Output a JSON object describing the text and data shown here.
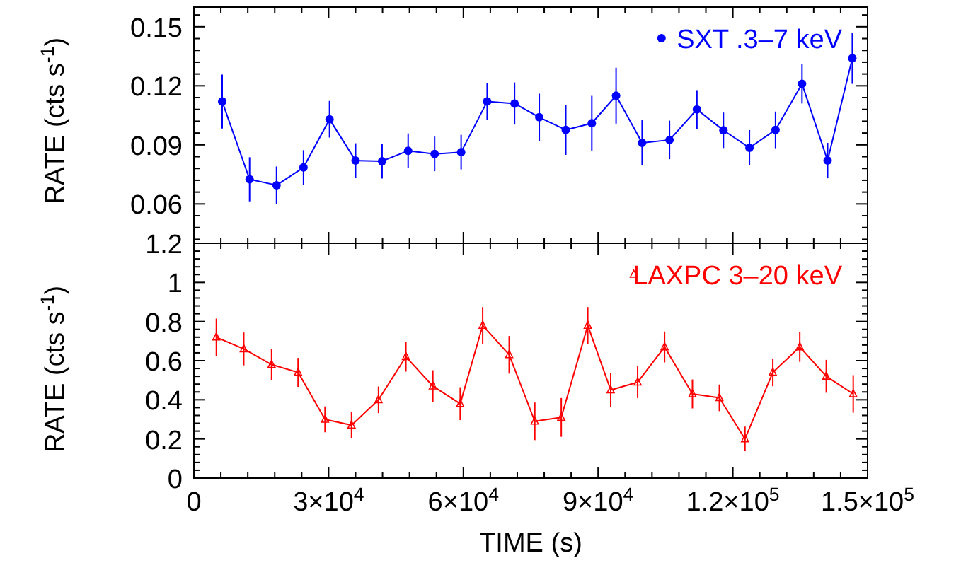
{
  "chart_data": [
    {
      "type": "line",
      "ylabel": "RATE (cts s$^{-1}$)",
      "legend": "top right",
      "tick_labels": "y",
      "marker": "circle",
      "line_style": "solid",
      "xlim": [
        0,
        150000
      ],
      "xticks": [
        {
          "value": 0,
          "label": null
        },
        {
          "value": 6000,
          "label": null
        },
        {
          "value": 12000,
          "label": null
        },
        {
          "value": 18000,
          "label": null
        },
        {
          "value": 24000,
          "label": null
        },
        {
          "value": 30000,
          "label": null
        },
        {
          "value": 36000,
          "label": null
        },
        {
          "value": 42000,
          "label": null
        },
        {
          "value": 48000,
          "label": null
        },
        {
          "value": 54000,
          "label": null
        },
        {
          "value": 60000,
          "label": null
        },
        {
          "value": 66000,
          "label": null
        },
        {
          "value": 72000,
          "label": null
        },
        {
          "value": 78000,
          "label": null
        },
        {
          "value": 84000,
          "label": null
        },
        {
          "value": 90000,
          "label": null
        },
        {
          "value": 96000,
          "label": null
        },
        {
          "value": 102000,
          "label": null
        },
        {
          "value": 108000,
          "label": null
        },
        {
          "value": 114000,
          "label": null
        },
        {
          "value": 120000,
          "label": null
        },
        {
          "value": 126000,
          "label": null
        },
        {
          "value": 132000,
          "label": null
        },
        {
          "value": 138000,
          "label": null
        },
        {
          "value": 144000,
          "label": null
        },
        {
          "value": 150000,
          "label": null
        }
      ],
      "ylim": [
        0.04,
        0.16
      ],
      "yticks": [
        {
          "value": 0.042,
          "label": null
        },
        {
          "value": 0.048,
          "label": null
        },
        {
          "value": 0.054,
          "label": null
        },
        0.06,
        {
          "value": 0.066,
          "label": null
        },
        {
          "value": 0.072,
          "label": null
        },
        {
          "value": 0.078,
          "label": null
        },
        {
          "value": 0.084,
          "label": null
        },
        0.09,
        {
          "value": 0.096,
          "label": null
        },
        {
          "value": 0.102,
          "label": null
        },
        {
          "value": 0.108,
          "label": null
        },
        {
          "value": 0.114,
          "label": null
        },
        0.12,
        {
          "value": 0.126,
          "label": null
        },
        {
          "value": 0.132,
          "label": null
        },
        {
          "value": 0.138,
          "label": null
        },
        {
          "value": 0.144,
          "label": null
        },
        0.15,
        {
          "value": 0.156,
          "label": null
        }
      ],
      "series": [
        {
          "name": "SXT .3–7 keV",
          "color": "#0000ff",
          "x": [
            6300,
            12400,
            18400,
            24400,
            30200,
            36000,
            41900,
            47700,
            53600,
            59500,
            65300,
            71400,
            76900,
            82800,
            88600,
            94000,
            99800,
            105900,
            112000,
            117900,
            123700,
            129500,
            135400,
            141100,
            146600
          ],
          "values": [
            0.112,
            0.0725,
            0.0695,
            0.0785,
            0.103,
            0.082,
            0.0817,
            0.087,
            0.0854,
            0.0863,
            0.112,
            0.111,
            0.104,
            0.0976,
            0.101,
            0.115,
            0.091,
            0.0925,
            0.108,
            0.0974,
            0.0885,
            0.0976,
            0.121,
            0.082,
            0.134
          ],
          "errors": [
            0.0137,
            0.0112,
            0.0095,
            0.0088,
            0.0093,
            0.0088,
            0.0088,
            0.0088,
            0.0088,
            0.0088,
            0.0093,
            0.0107,
            0.012,
            0.0127,
            0.0139,
            0.0142,
            0.0115,
            0.0098,
            0.0098,
            0.009,
            0.009,
            0.0093,
            0.01,
            0.009,
            0.013
          ]
        }
      ]
    },
    {
      "type": "line",
      "xlabel": "TIME (s)",
      "ylabel": "RATE (cts s$^{-1}$)",
      "legend": "top right",
      "marker": "triangle",
      "line_style": "solid",
      "xlim": [
        0,
        150000
      ],
      "xticks": [
        0,
        {
          "value": 6000,
          "label": null
        },
        {
          "value": 12000,
          "label": null
        },
        {
          "value": 18000,
          "label": null
        },
        {
          "value": 24000,
          "label": null
        },
        {
          "value": 30000,
          "label": "3×10$^{4}$"
        },
        {
          "value": 36000,
          "label": null
        },
        {
          "value": 42000,
          "label": null
        },
        {
          "value": 48000,
          "label": null
        },
        {
          "value": 54000,
          "label": null
        },
        {
          "value": 60000,
          "label": "6×10$^{4}$"
        },
        {
          "value": 66000,
          "label": null
        },
        {
          "value": 72000,
          "label": null
        },
        {
          "value": 78000,
          "label": null
        },
        {
          "value": 84000,
          "label": null
        },
        {
          "value": 90000,
          "label": "9×10$^{4}$"
        },
        {
          "value": 96000,
          "label": null
        },
        {
          "value": 102000,
          "label": null
        },
        {
          "value": 108000,
          "label": null
        },
        {
          "value": 114000,
          "label": null
        },
        {
          "value": 120000,
          "label": "1.2×10$^{5}$"
        },
        {
          "value": 126000,
          "label": null
        },
        {
          "value": 132000,
          "label": null
        },
        {
          "value": 138000,
          "label": null
        },
        {
          "value": 144000,
          "label": null
        },
        {
          "value": 150000,
          "label": "1.5×10$^{5}$"
        }
      ],
      "ylim": [
        0,
        1.2
      ],
      "yticks": [
        0,
        {
          "value": 0.04,
          "label": null
        },
        {
          "value": 0.08,
          "label": null
        },
        {
          "value": 0.12,
          "label": null
        },
        {
          "value": 0.16,
          "label": null
        },
        0.2,
        {
          "value": 0.24,
          "label": null
        },
        {
          "value": 0.28,
          "label": null
        },
        {
          "value": 0.32,
          "label": null
        },
        {
          "value": 0.36,
          "label": null
        },
        0.4,
        {
          "value": 0.44,
          "label": null
        },
        {
          "value": 0.48,
          "label": null
        },
        {
          "value": 0.52,
          "label": null
        },
        {
          "value": 0.56,
          "label": null
        },
        0.6,
        {
          "value": 0.64,
          "label": null
        },
        {
          "value": 0.68,
          "label": null
        },
        {
          "value": 0.72,
          "label": null
        },
        {
          "value": 0.76,
          "label": null
        },
        0.8,
        {
          "value": 0.84,
          "label": null
        },
        {
          "value": 0.88,
          "label": null
        },
        {
          "value": 0.92,
          "label": null
        },
        {
          "value": 0.96,
          "label": null
        },
        1,
        {
          "value": 1.04,
          "label": null
        },
        {
          "value": 1.08,
          "label": null
        },
        {
          "value": 1.12,
          "label": null
        },
        {
          "value": 1.16,
          "label": null
        },
        1.2
      ],
      "series": [
        {
          "name": "LAXPC 3–20 keV",
          "color": "#ff0000",
          "x": [
            5000,
            11100,
            17300,
            23200,
            29200,
            35100,
            41100,
            47200,
            53200,
            59300,
            64300,
            70200,
            75900,
            81800,
            87700,
            92800,
            98800,
            104800,
            111000,
            117000,
            122700,
            128900,
            134900,
            140800,
            146800
          ],
          "values": [
            0.72,
            0.66,
            0.58,
            0.54,
            0.3,
            0.27,
            0.4,
            0.62,
            0.47,
            0.38,
            0.78,
            0.63,
            0.29,
            0.31,
            0.78,
            0.45,
            0.49,
            0.67,
            0.43,
            0.41,
            0.2,
            0.54,
            0.67,
            0.52,
            0.43
          ],
          "errors": [
            0.095,
            0.084,
            0.079,
            0.074,
            0.066,
            0.066,
            0.068,
            0.076,
            0.081,
            0.084,
            0.094,
            0.096,
            0.096,
            0.099,
            0.094,
            0.086,
            0.081,
            0.079,
            0.074,
            0.068,
            0.063,
            0.071,
            0.076,
            0.084,
            0.096
          ]
        }
      ]
    }
  ]
}
